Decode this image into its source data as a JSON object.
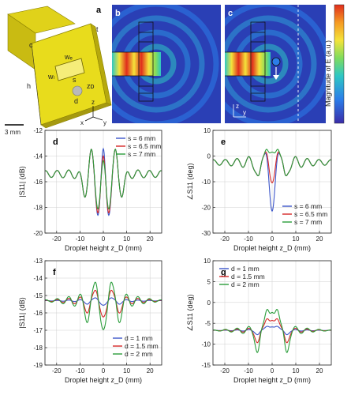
{
  "figure": {
    "panels": {
      "a": "a",
      "b": "b",
      "c": "c",
      "d": "d",
      "e": "e",
      "f": "f",
      "g": "g"
    },
    "schematic_labels": {
      "w_w": "wₑ",
      "w_l": "wₗ",
      "s": "s",
      "z_d": "zᴅ",
      "d": "d",
      "h": "h",
      "c": "c",
      "t": "t",
      "scale": "3 mm",
      "axes": [
        "z",
        "x",
        "y"
      ]
    },
    "field_axes": {
      "z": "z",
      "y": "y"
    },
    "colorbar": {
      "label": "Magnitude of E (a.u.)",
      "colors": [
        "#3a2ca8",
        "#2b7de9",
        "#2ec7c4",
        "#7fdc5e",
        "#f4e33a",
        "#f59a23",
        "#e02d1c"
      ]
    },
    "series_colors": [
      "#3b55c9",
      "#d62828",
      "#2a9d3a"
    ]
  },
  "chart_data": [
    {
      "panel": "d",
      "type": "line",
      "xlabel": "Droplet height z_D (mm)",
      "ylabel": "|S11| (dB)",
      "xlim": [
        -25,
        25
      ],
      "ylim": [
        -20,
        -12
      ],
      "xticks": [
        -20,
        -10,
        0,
        10,
        20
      ],
      "yticks": [
        -20,
        -18,
        -16,
        -14,
        -12
      ],
      "legend": "top-right",
      "series": [
        {
          "name": "s = 6 mm",
          "peak": [
            1.1,
            0.8,
            0.8,
            2.8,
            1.2
          ]
        },
        {
          "name": "s = 6.5 mm",
          "peak": [
            1.2,
            0.9,
            0.9,
            2.6,
            1.1
          ]
        },
        {
          "name": "s = 7 mm",
          "peak": [
            1.3,
            1.0,
            1.0,
            2.4,
            1.0
          ]
        }
      ]
    },
    {
      "panel": "e",
      "type": "line",
      "xlabel": "Droplet height z_D (mm)",
      "ylabel": "∠S11 (deg)",
      "xlim": [
        -25,
        25
      ],
      "ylim": [
        -30,
        10
      ],
      "xticks": [
        -20,
        -10,
        0,
        10,
        20
      ],
      "yticks": [
        -30,
        -20,
        -10,
        0,
        10
      ],
      "legend": "bottom-right",
      "series": [
        {
          "name": "s = 6 mm"
        },
        {
          "name": "s = 6.5 mm"
        },
        {
          "name": "s = 7 mm"
        }
      ]
    },
    {
      "panel": "f",
      "type": "line",
      "xlabel": "Droplet height z_D (mm)",
      "ylabel": "|S11| (dB)",
      "xlim": [
        -25,
        25
      ],
      "ylim": [
        -19,
        -13
      ],
      "xticks": [
        -20,
        -10,
        0,
        10,
        20
      ],
      "yticks": [
        -19,
        -18,
        -17,
        -16,
        -15,
        -14,
        -13
      ],
      "legend": "bottom-right",
      "series": [
        {
          "name": "d = 1 mm"
        },
        {
          "name": "d = 1.5 mm"
        },
        {
          "name": "d = 2 mm"
        }
      ]
    },
    {
      "panel": "g",
      "type": "line",
      "xlabel": "Droplet height z_D (mm)",
      "ylabel": "∠S11 (deg)",
      "xlim": [
        -25,
        25
      ],
      "ylim": [
        -15,
        10
      ],
      "xticks": [
        -20,
        -10,
        0,
        10,
        20
      ],
      "yticks": [
        -15,
        -10,
        -5,
        0,
        5,
        10
      ],
      "legend": "top-left",
      "series": [
        {
          "name": "d = 1 mm"
        },
        {
          "name": "d = 1.5 mm"
        },
        {
          "name": "d = 2 mm"
        }
      ]
    }
  ]
}
